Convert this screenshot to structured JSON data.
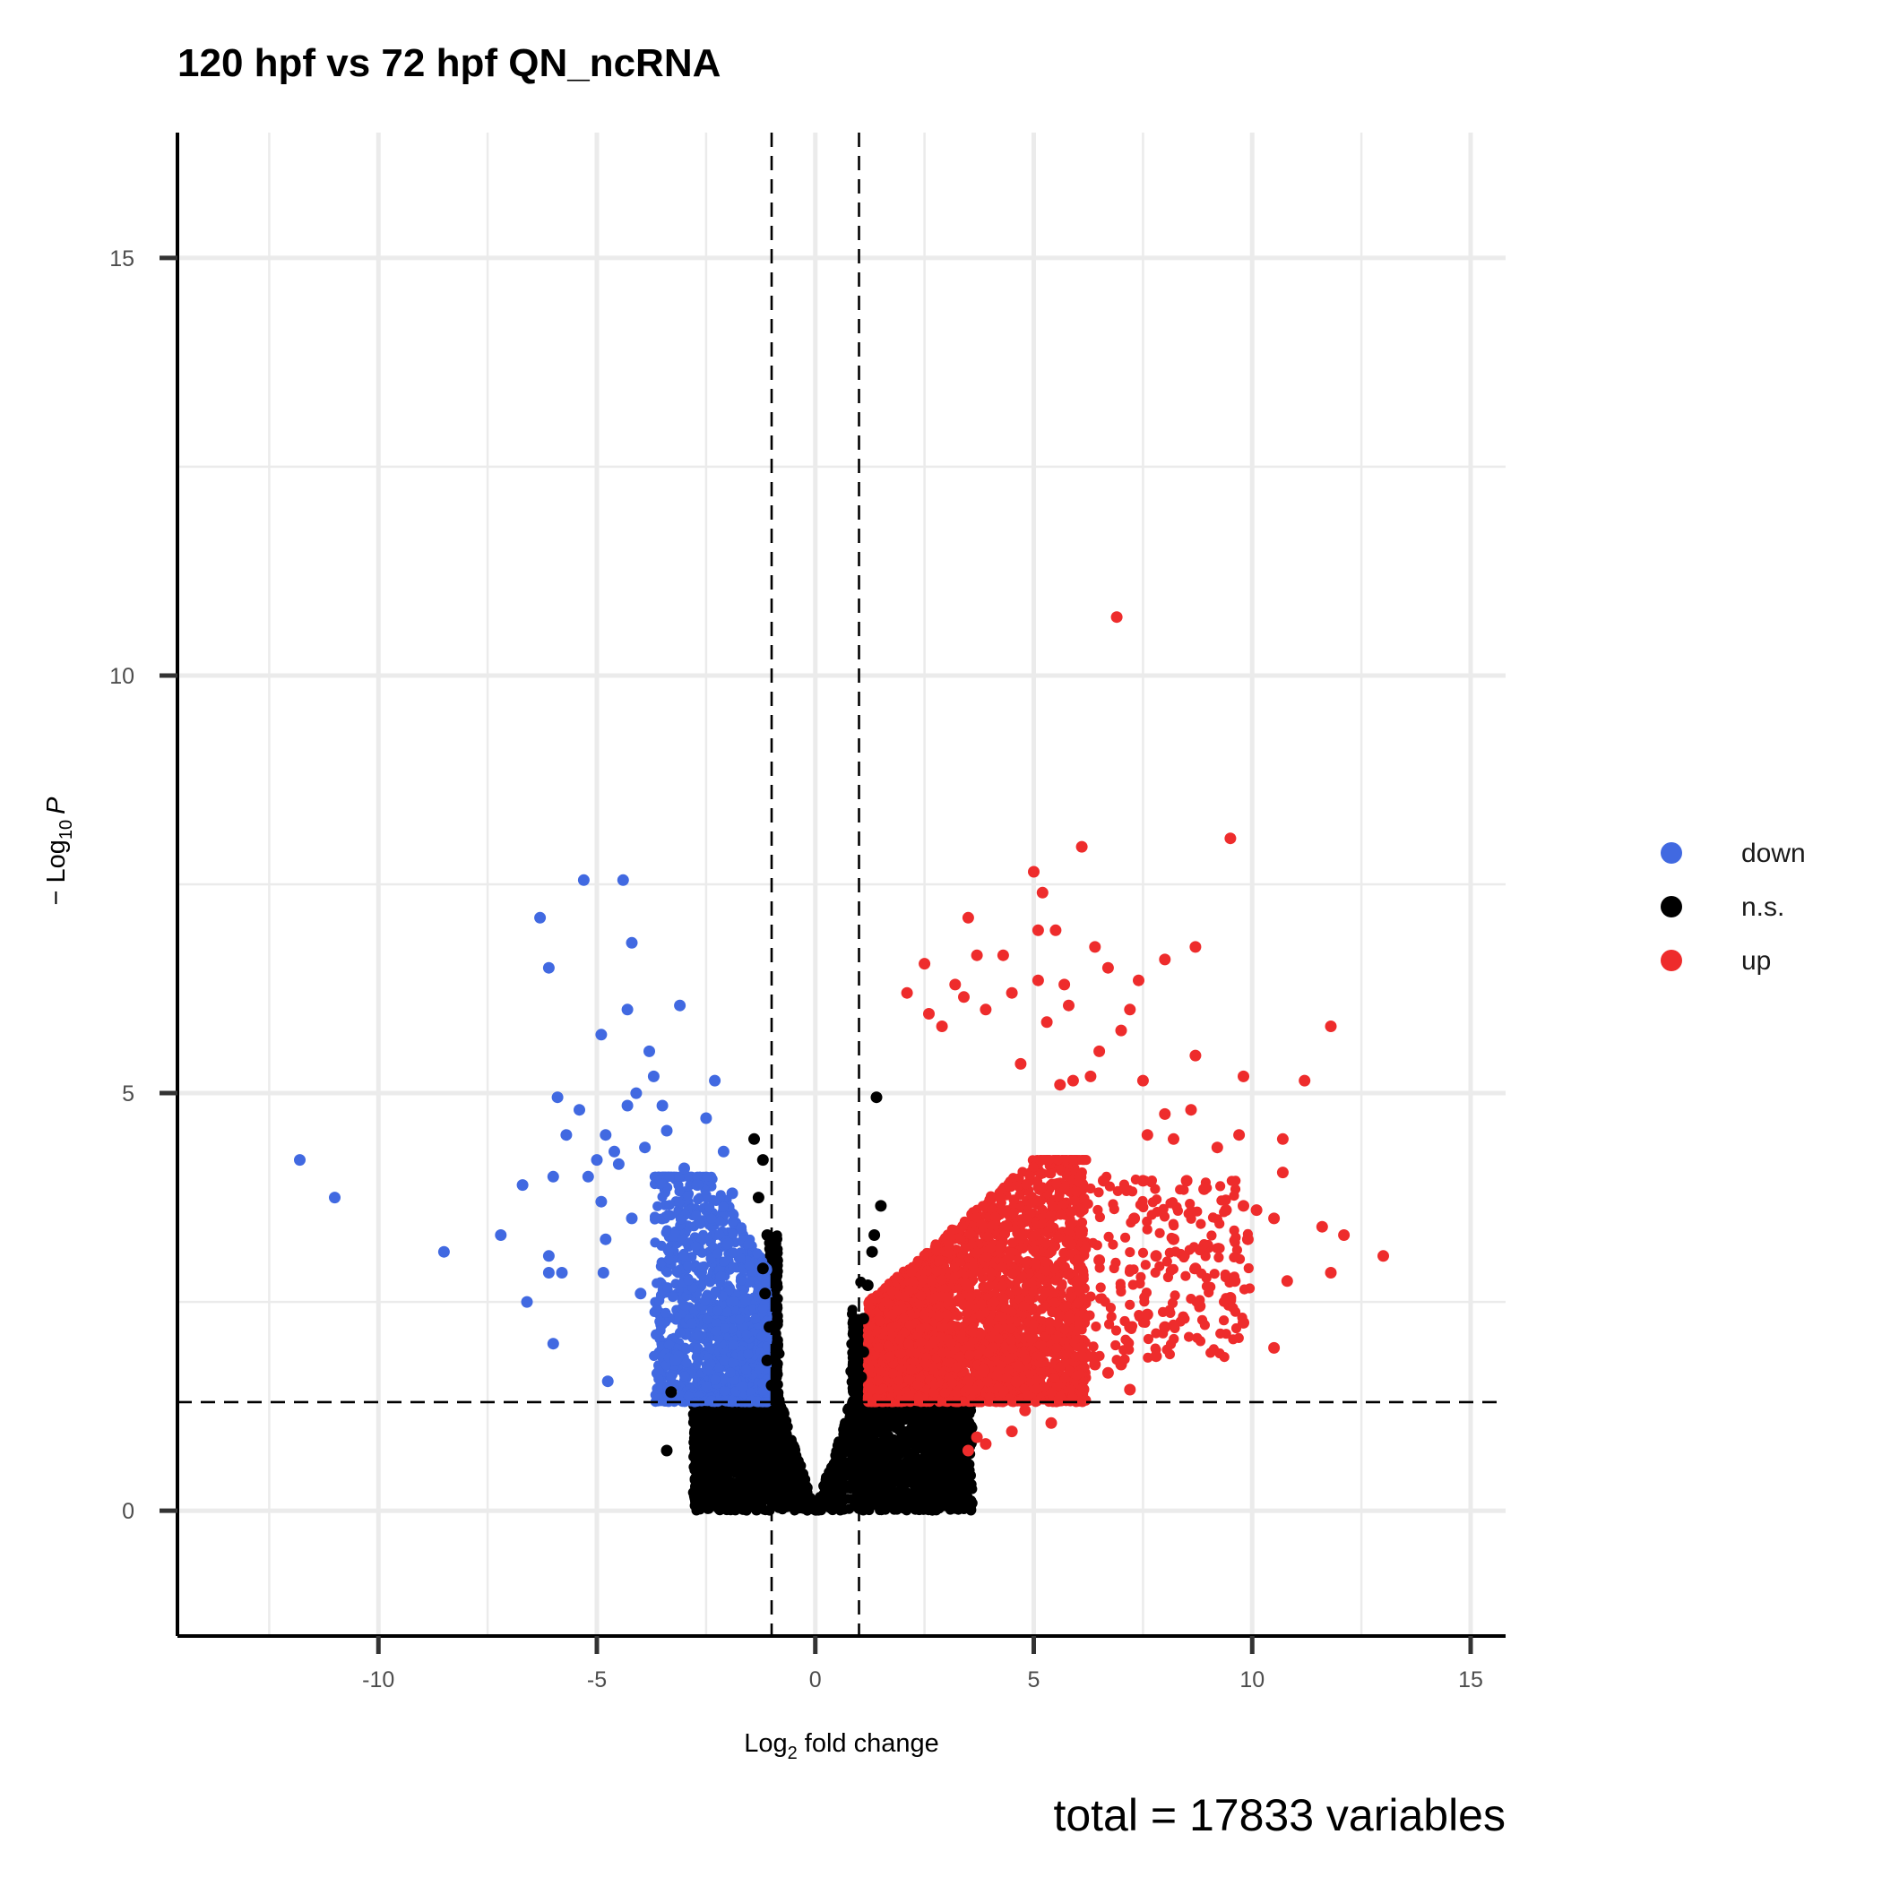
{
  "chart_data": {
    "type": "scatter",
    "title": "120 hpf vs 72 hpf QN_ncRNA",
    "caption": "total = 17833 variables",
    "xlabel": {
      "prefix": "Log",
      "sub": "2",
      "suffix": " fold change"
    },
    "ylabel": {
      "prefix": "− Log",
      "sub": "10",
      "suffix": "P"
    },
    "xlim": [
      -14.6,
      15.8
    ],
    "ylim": [
      -1.5,
      16.5
    ],
    "xticks": [
      -10,
      -5,
      0,
      5,
      10,
      15
    ],
    "xtick_labels": [
      "-10",
      "-5",
      "0",
      "5",
      "10",
      "15"
    ],
    "yticks": [
      0,
      5,
      10,
      15
    ],
    "ytick_labels": [
      "0",
      "5",
      "10",
      "15"
    ],
    "grid": true,
    "thresholds": {
      "log2fc": [
        -1,
        1
      ],
      "neg_log10_p": 1.3
    },
    "legend": {
      "position": "right",
      "entries": [
        {
          "label": "down",
          "color": "#4169e1"
        },
        {
          "label": "n.s.",
          "color": "#000000"
        },
        {
          "label": "up",
          "color": "#ee2c2c"
        }
      ]
    },
    "series": [
      {
        "name": "down",
        "color": "#4169e1",
        "points": [
          [
            -11.8,
            4.2
          ],
          [
            -11.0,
            3.75
          ],
          [
            -8.5,
            3.1
          ],
          [
            -7.2,
            3.3
          ],
          [
            -6.7,
            3.9
          ],
          [
            -6.6,
            2.5
          ],
          [
            -6.3,
            7.1
          ],
          [
            -6.1,
            6.5
          ],
          [
            -6.1,
            3.05
          ],
          [
            -6.1,
            2.85
          ],
          [
            -6.0,
            2.0
          ],
          [
            -6.0,
            4.0
          ],
          [
            -5.9,
            4.95
          ],
          [
            -5.8,
            2.85
          ],
          [
            -5.7,
            4.5
          ],
          [
            -5.4,
            4.8
          ],
          [
            -5.3,
            7.55
          ],
          [
            -5.2,
            4.0
          ],
          [
            -5.0,
            4.2
          ],
          [
            -4.9,
            5.7
          ],
          [
            -4.9,
            3.7
          ],
          [
            -4.85,
            2.85
          ],
          [
            -4.8,
            4.5
          ],
          [
            -4.8,
            3.25
          ],
          [
            -4.75,
            1.55
          ],
          [
            -4.6,
            4.3
          ],
          [
            -4.5,
            4.15
          ],
          [
            -4.4,
            7.55
          ],
          [
            -4.3,
            6.0
          ],
          [
            -4.2,
            6.8
          ],
          [
            -4.3,
            4.85
          ],
          [
            -4.2,
            3.5
          ],
          [
            -4.1,
            5.0
          ],
          [
            -4.0,
            2.6
          ],
          [
            -3.9,
            4.35
          ],
          [
            -3.8,
            5.5
          ],
          [
            -3.7,
            5.2
          ],
          [
            -3.5,
            4.85
          ],
          [
            -3.4,
            4.55
          ],
          [
            -3.2,
            1.8
          ],
          [
            -3.1,
            6.05
          ],
          [
            -3.0,
            4.1
          ],
          [
            -2.7,
            3.9
          ],
          [
            -2.5,
            4.7
          ],
          [
            -2.3,
            5.15
          ],
          [
            -2.1,
            4.3
          ],
          [
            -2.0,
            3.2
          ],
          [
            -1.9,
            3.8
          ]
        ]
      },
      {
        "name": "n.s.",
        "color": "#000000",
        "points": [
          [
            -1.4,
            4.45
          ],
          [
            -1.2,
            4.2
          ],
          [
            -1.3,
            3.75
          ],
          [
            -1.1,
            3.3
          ],
          [
            -1.2,
            2.9
          ],
          [
            -1.15,
            2.6
          ],
          [
            -1.05,
            2.2
          ],
          [
            -1.1,
            1.8
          ],
          [
            -1.0,
            1.5
          ],
          [
            1.4,
            4.95
          ],
          [
            1.5,
            3.65
          ],
          [
            1.35,
            3.3
          ],
          [
            1.3,
            3.1
          ],
          [
            1.2,
            2.7
          ],
          [
            1.1,
            2.3
          ],
          [
            1.1,
            1.9
          ],
          [
            1.05,
            1.6
          ],
          [
            -3.3,
            1.42
          ],
          [
            -3.4,
            0.72
          ]
        ]
      },
      {
        "name": "up",
        "color": "#ee2c2c",
        "points": [
          [
            6.9,
            10.7
          ],
          [
            9.5,
            8.05
          ],
          [
            6.1,
            7.95
          ],
          [
            5.0,
            7.65
          ],
          [
            5.2,
            7.4
          ],
          [
            3.5,
            7.1
          ],
          [
            5.1,
            6.95
          ],
          [
            5.5,
            6.95
          ],
          [
            6.4,
            6.75
          ],
          [
            8.7,
            6.75
          ],
          [
            3.7,
            6.65
          ],
          [
            4.3,
            6.65
          ],
          [
            2.5,
            6.55
          ],
          [
            6.7,
            6.5
          ],
          [
            8.0,
            6.6
          ],
          [
            5.1,
            6.35
          ],
          [
            3.2,
            6.3
          ],
          [
            5.7,
            6.3
          ],
          [
            7.4,
            6.35
          ],
          [
            2.1,
            6.2
          ],
          [
            3.4,
            6.15
          ],
          [
            4.5,
            6.2
          ],
          [
            5.8,
            6.05
          ],
          [
            2.6,
            5.95
          ],
          [
            3.9,
            6.0
          ],
          [
            7.2,
            6.0
          ],
          [
            5.3,
            5.85
          ],
          [
            2.9,
            5.8
          ],
          [
            11.8,
            5.8
          ],
          [
            7.0,
            5.75
          ],
          [
            6.5,
            5.5
          ],
          [
            8.7,
            5.45
          ],
          [
            5.6,
            5.1
          ],
          [
            5.9,
            5.15
          ],
          [
            6.3,
            5.2
          ],
          [
            7.5,
            5.15
          ],
          [
            9.8,
            5.2
          ],
          [
            11.2,
            5.15
          ],
          [
            4.7,
            5.35
          ],
          [
            8.6,
            4.8
          ],
          [
            8.0,
            4.75
          ],
          [
            7.6,
            4.5
          ],
          [
            8.2,
            4.45
          ],
          [
            9.2,
            4.35
          ],
          [
            9.7,
            4.5
          ],
          [
            10.7,
            4.45
          ],
          [
            10.7,
            4.05
          ],
          [
            8.5,
            3.95
          ],
          [
            7.5,
            3.95
          ],
          [
            6.6,
            3.95
          ],
          [
            9.4,
            3.6
          ],
          [
            9.8,
            3.65
          ],
          [
            10.1,
            3.6
          ],
          [
            10.5,
            3.5
          ],
          [
            9.9,
            3.25
          ],
          [
            11.6,
            3.4
          ],
          [
            12.1,
            3.3
          ],
          [
            13.0,
            3.05
          ],
          [
            11.8,
            2.85
          ],
          [
            10.8,
            2.75
          ],
          [
            9.6,
            2.75
          ],
          [
            8.8,
            2.45
          ],
          [
            9.5,
            2.55
          ],
          [
            9.8,
            2.25
          ],
          [
            10.5,
            1.95
          ],
          [
            7.8,
            1.85
          ],
          [
            8.0,
            2.2
          ],
          [
            7.2,
            2.2
          ],
          [
            7.6,
            2.35
          ],
          [
            7.0,
            1.75
          ],
          [
            7.2,
            1.45
          ],
          [
            5.6,
            1.35
          ],
          [
            5.4,
            1.05
          ],
          [
            4.8,
            1.2
          ],
          [
            4.6,
            1.55
          ],
          [
            6.4,
            1.75
          ],
          [
            6.1,
            1.95
          ],
          [
            6.7,
            1.65
          ],
          [
            3.5,
            0.72
          ],
          [
            3.7,
            0.88
          ],
          [
            3.9,
            0.8
          ],
          [
            4.5,
            0.95
          ],
          [
            5.8,
            2.3
          ],
          [
            6.0,
            2.75
          ],
          [
            6.5,
            3.0
          ],
          [
            8.9,
            3.85
          ],
          [
            8.2,
            3.25
          ],
          [
            7.8,
            3.05
          ],
          [
            8.7,
            2.9
          ],
          [
            7.3,
            3.5
          ]
        ]
      }
    ]
  }
}
